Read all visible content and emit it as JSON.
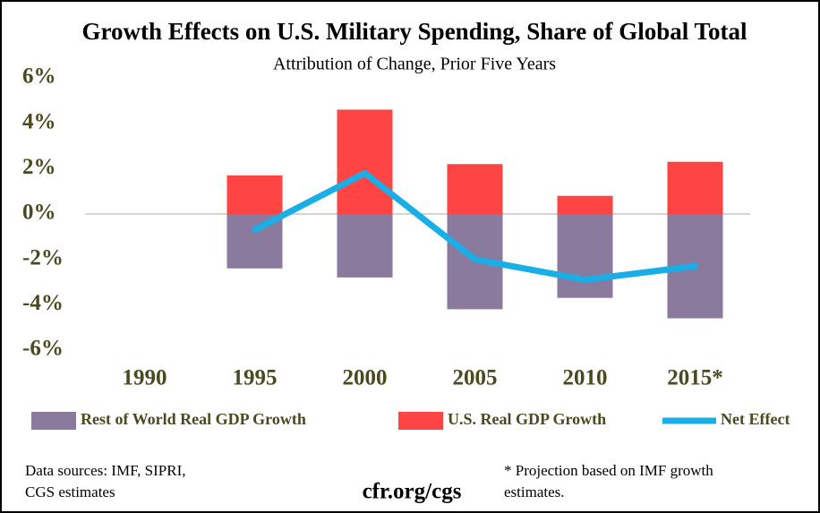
{
  "chart_data": {
    "type": "bar",
    "title": "Growth Effects on U.S. Military Spending, Share of Global Total",
    "subtitle": "Attribution of Change, Prior Five Years",
    "categories": [
      "1990",
      "1995",
      "2000",
      "2005",
      "2010",
      "2015*"
    ],
    "series": [
      {
        "name": "Rest of World Real GDP Growth",
        "type": "bar",
        "color": "#8a7a9e",
        "values": [
          null,
          -2.4,
          -2.8,
          -4.2,
          -3.7,
          -4.6
        ]
      },
      {
        "name": "U.S. Real GDP Growth",
        "type": "bar",
        "color": "#ff4444",
        "values": [
          null,
          1.7,
          4.6,
          2.2,
          0.8,
          2.3
        ]
      },
      {
        "name": "Net Effect",
        "type": "line",
        "color": "#1aaee6",
        "values": [
          null,
          -0.7,
          1.8,
          -2.0,
          -2.9,
          -2.3
        ]
      }
    ],
    "ylim": [
      -6,
      6
    ],
    "yticks": [
      {
        "value": 6,
        "label": "6%"
      },
      {
        "value": 4,
        "label": "4%"
      },
      {
        "value": 2,
        "label": "2%"
      },
      {
        "value": 0,
        "label": "0%"
      },
      {
        "value": -2,
        "label": "-2%"
      },
      {
        "value": -4,
        "label": "-4%"
      },
      {
        "value": -6,
        "label": "-6%"
      }
    ],
    "legend": "bottom",
    "notes": {
      "sources": [
        "Data sources: IMF, SIPRI,",
        "CGS estimates"
      ],
      "site": "cfr.org/cgs",
      "footnote": [
        "* Projection based on IMF growth",
        "estimates."
      ]
    }
  }
}
